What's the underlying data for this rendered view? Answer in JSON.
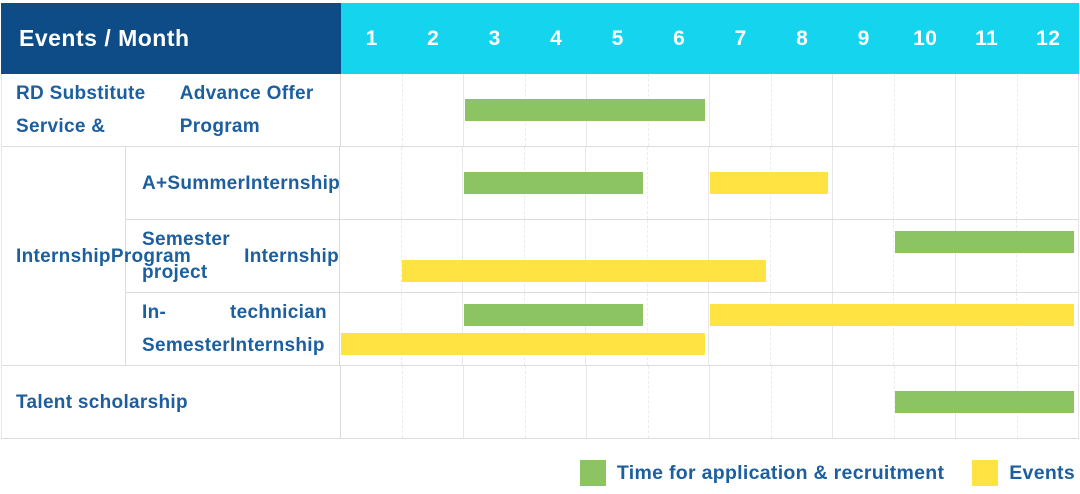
{
  "table": {
    "corner_label": "Events / Month",
    "months": [
      "1",
      "2",
      "3",
      "4",
      "5",
      "6",
      "7",
      "8",
      "9",
      "10",
      "11",
      "12"
    ]
  },
  "colors": {
    "header_bg": "#0d4c87",
    "month_header_bg": "#14d4ee",
    "application_green": "#8cc363",
    "events_yellow": "#ffe342",
    "label_text": "#1c5e9e",
    "grid_line": "#e8e8e8"
  },
  "legend": {
    "items": [
      {
        "key": "application",
        "label": "Time for application & recruitment",
        "color": "#8cc363"
      },
      {
        "key": "events",
        "label": "Events",
        "color": "#ffe342"
      }
    ]
  },
  "chart_data": {
    "type": "table",
    "subtype": "gantt-schedule",
    "title": "Events / Month",
    "x": {
      "label": "Month",
      "ticks": [
        1,
        2,
        3,
        4,
        5,
        6,
        7,
        8,
        9,
        10,
        11,
        12
      ],
      "range": [
        1,
        12
      ]
    },
    "series_legend": [
      {
        "name": "Time for application & recruitment",
        "color": "#8cc363"
      },
      {
        "name": "Events",
        "color": "#ffe342"
      }
    ],
    "rows": [
      {
        "group": null,
        "label_lines": [
          "RD Substitute Service &",
          "Advance Offer Program"
        ],
        "bar_lines": [
          [
            {
              "series": "application",
              "start_month": 3,
              "end_month": 6
            }
          ]
        ]
      },
      {
        "group": "Internship Program",
        "label_lines": [
          "A+Summer",
          "Internship"
        ],
        "bar_lines": [
          [
            {
              "series": "application",
              "start_month": 3,
              "end_month": 5
            },
            {
              "series": "events",
              "start_month": 7,
              "end_month": 8
            }
          ]
        ]
      },
      {
        "group": "Internship Program",
        "label_lines": [
          "Semester project",
          "Internship"
        ],
        "bar_lines": [
          [
            {
              "series": "application",
              "start_month": 10,
              "end_month": 12
            }
          ],
          [
            {
              "series": "events",
              "start_month": 2,
              "end_month": 7
            }
          ]
        ]
      },
      {
        "group": "Internship Program",
        "label_lines": [
          "In-Semester",
          "technician Internship"
        ],
        "bar_lines": [
          [
            {
              "series": "application",
              "start_month": 3,
              "end_month": 5
            },
            {
              "series": "events",
              "start_month": 7,
              "end_month": 12
            }
          ],
          [
            {
              "series": "events",
              "start_month": 1,
              "end_month": 6
            }
          ]
        ]
      },
      {
        "group": null,
        "label_lines": [
          "Talent scholarship"
        ],
        "bar_lines": [
          [
            {
              "series": "application",
              "start_month": 10,
              "end_month": 12
            }
          ]
        ]
      }
    ]
  }
}
